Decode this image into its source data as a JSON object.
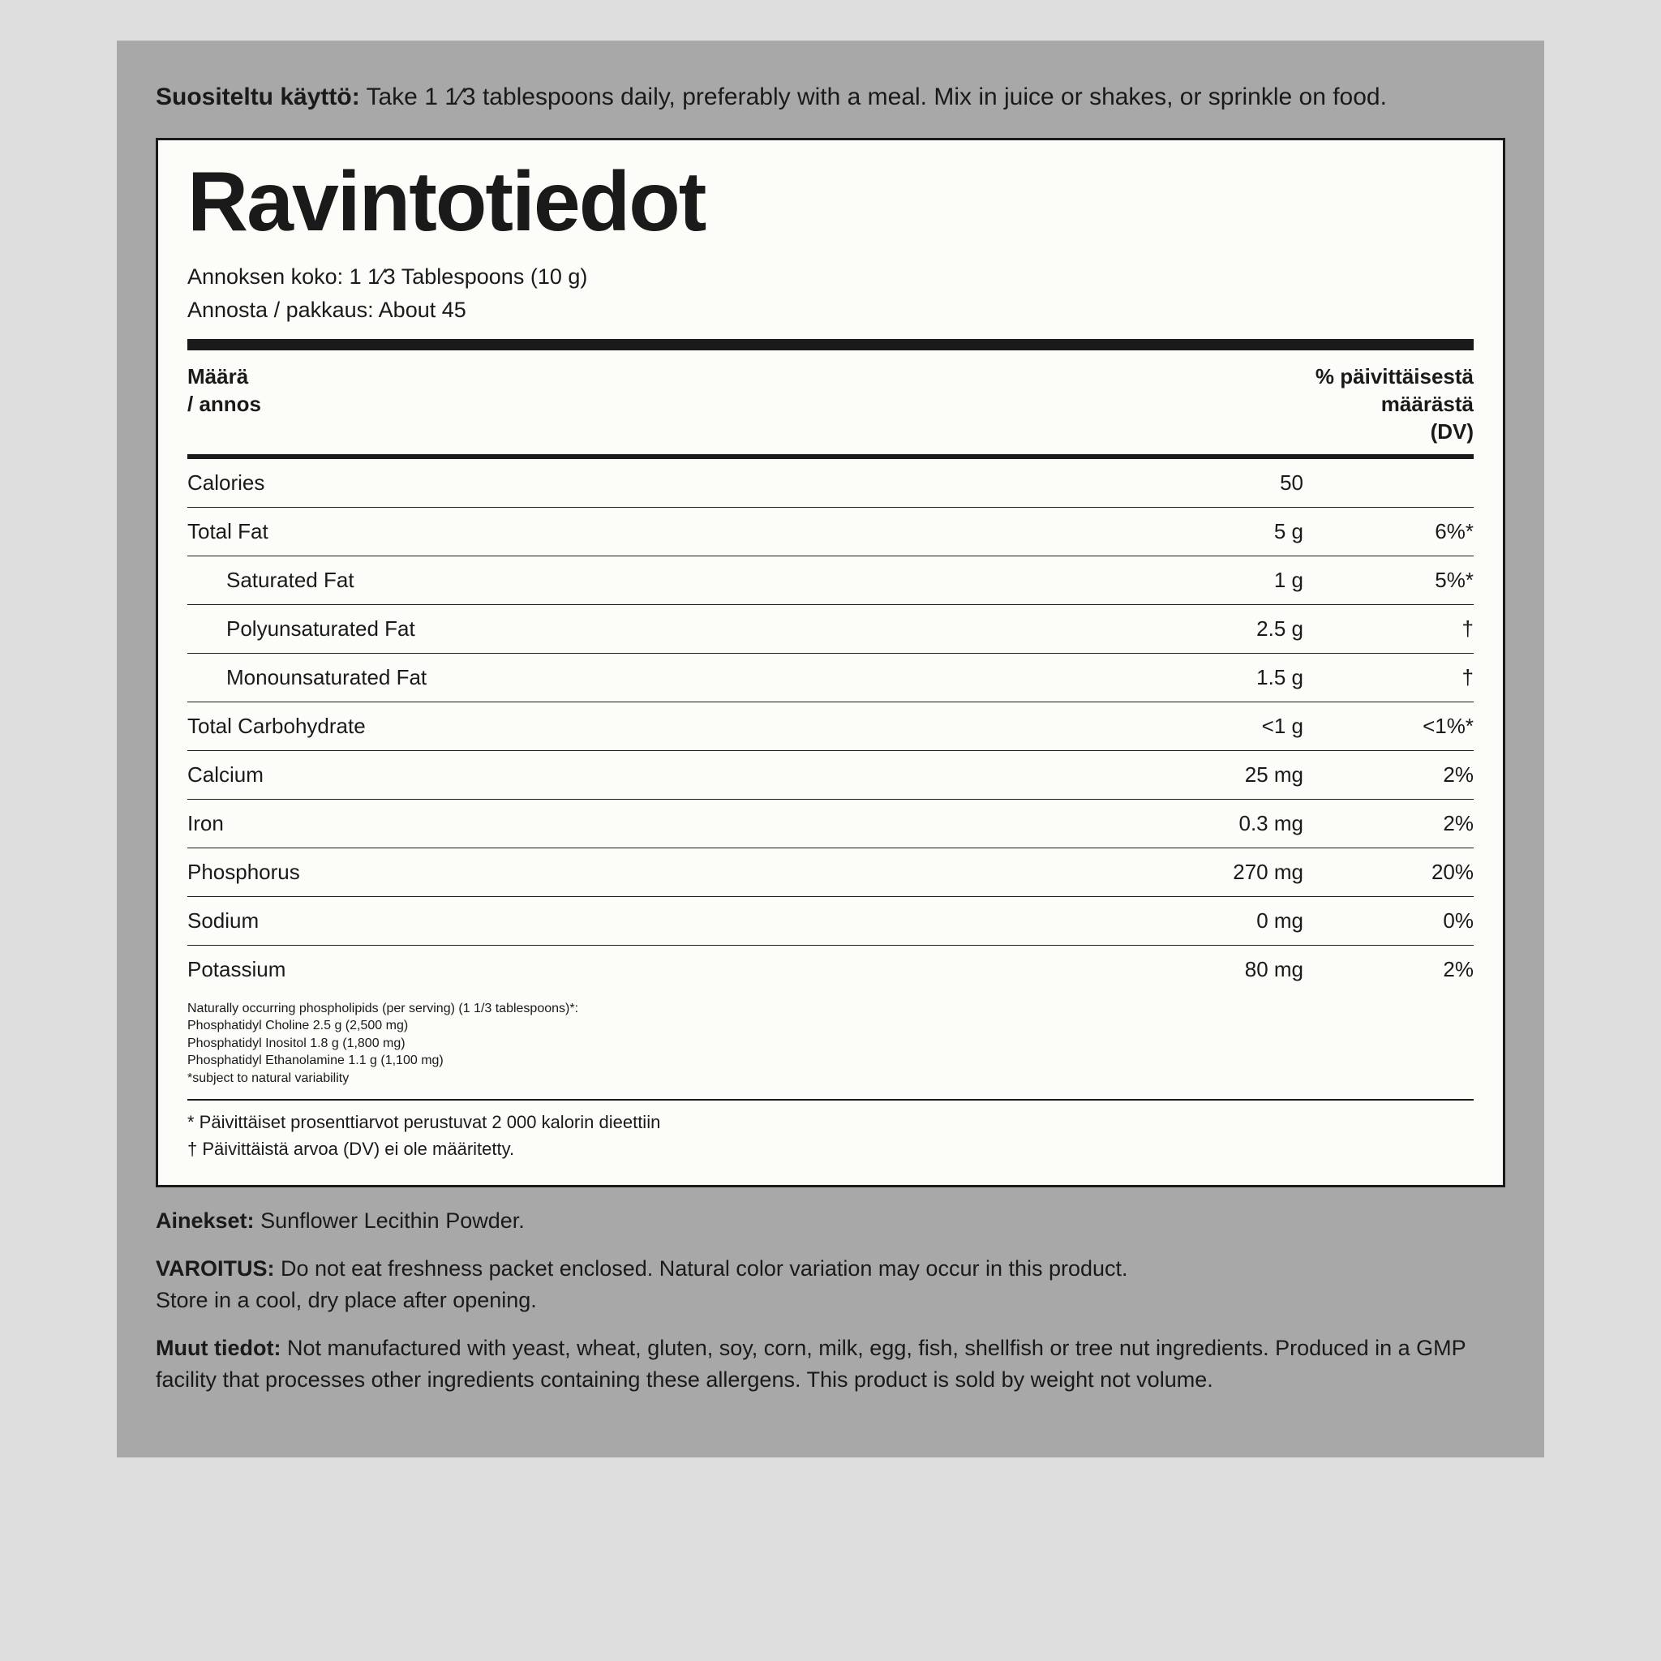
{
  "usage": {
    "label": "Suositeltu käyttö:",
    "text": "Take 1 1⁄3 tablespoons daily, preferably with a meal. Mix in juice or shakes, or sprinkle on food."
  },
  "facts": {
    "title": "Ravintotiedot",
    "serving_size_label": "Annoksen koko:",
    "serving_size": "1 1⁄3 Tablespoons (10 g)",
    "servings_label": "Annosta / pakkaus:",
    "servings": "About 45",
    "col_amount": "Määrä / annos",
    "col_dv": "% päivittäisestä määrästä (DV)",
    "rows": [
      {
        "label": "Calories",
        "amt": "50",
        "dv": "",
        "indent": false
      },
      {
        "label": "Total Fat",
        "amt": "5 g",
        "dv": "6%*",
        "indent": false
      },
      {
        "label": "Saturated Fat",
        "amt": "1 g",
        "dv": "5%*",
        "indent": true
      },
      {
        "label": "Polyunsaturated Fat",
        "amt": "2.5 g",
        "dv": "†",
        "indent": true
      },
      {
        "label": "Monounsaturated Fat",
        "amt": "1.5 g",
        "dv": "†",
        "indent": true
      },
      {
        "label": "Total Carbohydrate",
        "amt": "<1 g",
        "dv": "<1%*",
        "indent": false
      },
      {
        "label": "Calcium",
        "amt": "25 mg",
        "dv": "2%",
        "indent": false
      },
      {
        "label": "Iron",
        "amt": "0.3 mg",
        "dv": "2%",
        "indent": false
      },
      {
        "label": "Phosphorus",
        "amt": "270 mg",
        "dv": "20%",
        "indent": false
      },
      {
        "label": "Sodium",
        "amt": "0 mg",
        "dv": "0%",
        "indent": false
      },
      {
        "label": "Potassium",
        "amt": "80 mg",
        "dv": "2%",
        "indent": false
      }
    ],
    "phospholipids": [
      "Naturally occurring phospholipids (per serving) (1 1/3 tablespoons)*:",
      "Phosphatidyl Choline 2.5 g (2,500 mg)",
      "Phosphatidyl Inositol 1.8 g (1,800 mg)",
      "Phosphatidyl Ethanolamine 1.1 g (1,100 mg)",
      "*subject to natural variability"
    ],
    "dv_note1": "* Päivittäiset prosenttiarvot perustuvat 2 000 kalorin dieettiin",
    "dv_note2": "† Päivittäistä arvoa (DV) ei ole määritetty."
  },
  "ingredients": {
    "label": "Ainekset:",
    "text": "Sunflower Lecithin Powder."
  },
  "warning": {
    "label": "VAROITUS:",
    "line1": "Do not eat freshness packet enclosed. Natural color variation may occur in this product.",
    "line2": "Store in a cool, dry place after opening."
  },
  "other": {
    "label": "Muut tiedot:",
    "text": "Not manufactured with yeast, wheat, gluten, soy, corn, milk, egg, fish, shellfish or tree nut ingredients. Produced in a GMP facility that processes other ingredients containing these allergens. This product is sold by weight not volume."
  },
  "style": {
    "page_bg": "#dedede",
    "panel_bg": "#a8a8a8",
    "box_bg": "#fcfdf8",
    "text": "#1a1a1a"
  }
}
